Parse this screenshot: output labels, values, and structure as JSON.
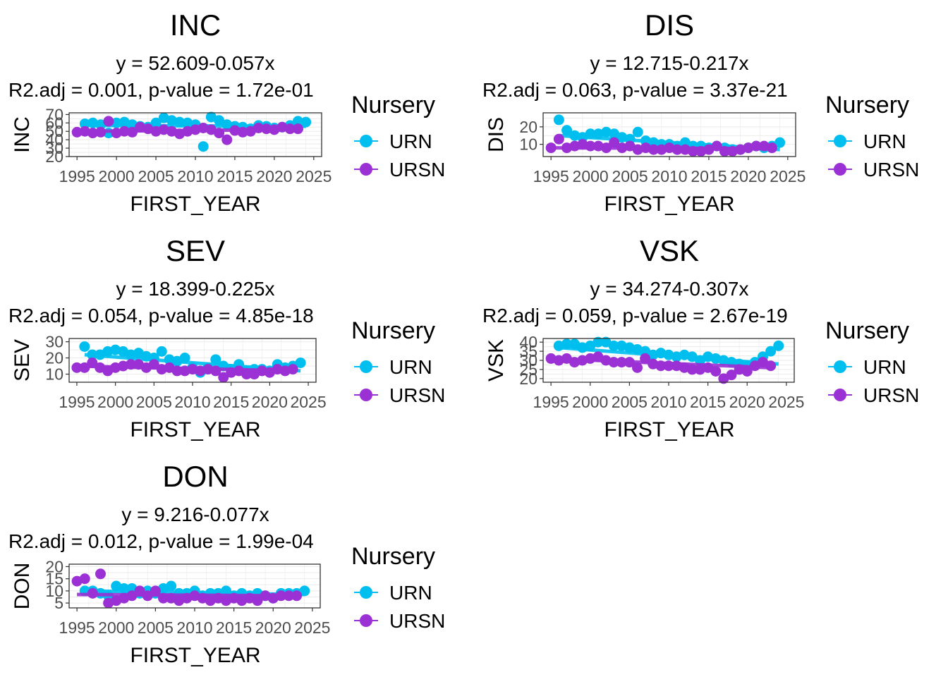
{
  "colors": {
    "URN": "#00bfef",
    "URSN": "#9b30d4",
    "grid": "#ebebeb",
    "axis": "#333333"
  },
  "chart_data": [
    {
      "type": "scatter",
      "title": "INC",
      "subtitle_eq": "y = 52.609-0.057x",
      "subtitle_stats": "R2.adj = 0.001, p-value = 1.72e-01",
      "xlabel": "FIRST_YEAR",
      "ylabel": "INC",
      "xlim": [
        1994,
        2026
      ],
      "ylim": [
        20,
        72
      ],
      "xticks": [
        1995,
        2000,
        2005,
        2010,
        2015,
        2020,
        2025
      ],
      "yticks": [
        20,
        30,
        40,
        50,
        60,
        70
      ],
      "grid": true,
      "legend": {
        "title": "Nursery",
        "position": "right",
        "entries": [
          "URN",
          "URSN"
        ]
      },
      "series": [
        {
          "name": "URN",
          "x": [
            1996,
            1997,
            1998,
            1999,
            2000,
            2001,
            2002,
            2003,
            2004,
            2005,
            2006,
            2007,
            2008,
            2009,
            2010,
            2011,
            2012,
            2013,
            2014,
            2015,
            2016,
            2017,
            2018,
            2019,
            2020,
            2021,
            2022,
            2023,
            2024
          ],
          "y": [
            59,
            60,
            58,
            48,
            60,
            61,
            58,
            56,
            55,
            60,
            66,
            63,
            61,
            60,
            58,
            32,
            67,
            63,
            58,
            56,
            55,
            53,
            57,
            56,
            54,
            55,
            57,
            62,
            61
          ],
          "trend": [
            57,
            56
          ]
        },
        {
          "name": "URSN",
          "x": [
            1995,
            1996,
            1997,
            1998,
            1999,
            2000,
            2001,
            2002,
            2003,
            2004,
            2005,
            2006,
            2007,
            2008,
            2009,
            2010,
            2011,
            2012,
            2013,
            2014,
            2015,
            2016,
            2017,
            2018,
            2019,
            2020,
            2021,
            2022,
            2023
          ],
          "y": [
            49,
            50,
            48,
            49,
            62,
            48,
            50,
            49,
            55,
            53,
            50,
            52,
            50,
            47,
            50,
            52,
            54,
            52,
            48,
            40,
            51,
            49,
            50,
            54,
            53,
            52,
            55,
            53,
            53
          ],
          "trend": [
            50,
            52
          ]
        }
      ]
    },
    {
      "type": "scatter",
      "title": "DIS",
      "subtitle_eq": "y = 12.715-0.217x",
      "subtitle_stats": "R2.adj = 0.063, p-value = 3.37e-21",
      "xlabel": "FIRST_YEAR",
      "ylabel": "DIS",
      "xlim": [
        1994,
        2026
      ],
      "ylim": [
        3,
        28
      ],
      "xticks": [
        1995,
        2000,
        2005,
        2010,
        2015,
        2020,
        2025
      ],
      "yticks": [
        10,
        20
      ],
      "grid": true,
      "legend": {
        "title": "Nursery",
        "position": "right",
        "entries": [
          "URN",
          "URSN"
        ]
      },
      "series": [
        {
          "name": "URN",
          "x": [
            1996,
            1997,
            1998,
            1999,
            2000,
            2001,
            2002,
            2003,
            2004,
            2005,
            2006,
            2007,
            2008,
            2009,
            2010,
            2011,
            2012,
            2013,
            2014,
            2015,
            2016,
            2017,
            2018,
            2019,
            2020,
            2021,
            2022,
            2023,
            2024
          ],
          "y": [
            24,
            18,
            15,
            14,
            16,
            16,
            17,
            16,
            14,
            13,
            17,
            12,
            11,
            10,
            10,
            9,
            11,
            9,
            9,
            8,
            9,
            8,
            7,
            7,
            8,
            9,
            8,
            9,
            11
          ],
          "trend": [
            15,
            7
          ]
        },
        {
          "name": "URSN",
          "x": [
            1995,
            1996,
            1997,
            1998,
            1999,
            2000,
            2001,
            2002,
            2003,
            2004,
            2005,
            2006,
            2007,
            2008,
            2009,
            2010,
            2011,
            2012,
            2013,
            2014,
            2015,
            2016,
            2017,
            2018,
            2019,
            2020,
            2021,
            2022,
            2023
          ],
          "y": [
            8,
            13,
            8,
            9,
            10,
            9,
            9,
            8,
            11,
            8,
            9,
            7,
            8,
            7,
            7,
            8,
            7,
            7,
            6,
            6,
            7,
            9,
            6,
            6,
            7,
            8,
            9,
            9,
            8
          ],
          "trend": [
            8,
            7.5
          ]
        }
      ]
    },
    {
      "type": "scatter",
      "title": "SEV",
      "subtitle_eq": "y = 18.399-0.225x",
      "subtitle_stats": "R2.adj = 0.054, p-value = 4.85e-18",
      "xlabel": "FIRST_YEAR",
      "ylabel": "SEV",
      "xlim": [
        1994,
        2026
      ],
      "ylim": [
        5,
        32
      ],
      "xticks": [
        1995,
        2000,
        2005,
        2010,
        2015,
        2020,
        2025
      ],
      "yticks": [
        10,
        20,
        30
      ],
      "grid": true,
      "legend": {
        "title": "Nursery",
        "position": "right",
        "entries": [
          "URN",
          "URSN"
        ]
      },
      "series": [
        {
          "name": "URN",
          "x": [
            1996,
            1997,
            1998,
            1999,
            2000,
            2001,
            2002,
            2003,
            2004,
            2005,
            2006,
            2007,
            2008,
            2009,
            2010,
            2011,
            2012,
            2013,
            2014,
            2015,
            2016,
            2017,
            2018,
            2019,
            2020,
            2021,
            2022,
            2023,
            2024
          ],
          "y": [
            27,
            22,
            22,
            24,
            25,
            24,
            22,
            23,
            21,
            20,
            24,
            19,
            18,
            20,
            14,
            11,
            14,
            19,
            15,
            13,
            16,
            12,
            13,
            13,
            12,
            16,
            14,
            15,
            17
          ],
          "trend": [
            22,
            12
          ]
        },
        {
          "name": "URSN",
          "x": [
            1995,
            1996,
            1997,
            1998,
            1999,
            2000,
            2001,
            2002,
            2003,
            2004,
            2005,
            2006,
            2007,
            2008,
            2009,
            2010,
            2011,
            2012,
            2013,
            2014,
            2015,
            2016,
            2017,
            2018,
            2019,
            2020,
            2021,
            2022,
            2023
          ],
          "y": [
            14,
            14,
            17,
            14,
            12,
            14,
            15,
            16,
            16,
            14,
            16,
            13,
            14,
            12,
            12,
            13,
            12,
            13,
            12,
            8,
            11,
            12,
            10,
            10,
            12,
            11,
            13,
            12,
            13
          ],
          "trend": [
            15,
            12
          ]
        }
      ]
    },
    {
      "type": "scatter",
      "title": "VSK",
      "subtitle_eq": "y = 34.274-0.307x",
      "subtitle_stats": "R2.adj = 0.059, p-value = 2.67e-19",
      "xlabel": "FIRST_YEAR",
      "ylabel": "VSK",
      "xlim": [
        1994,
        2026
      ],
      "ylim": [
        18,
        42
      ],
      "xticks": [
        1995,
        2000,
        2005,
        2010,
        2015,
        2020,
        2025
      ],
      "yticks": [
        20,
        25,
        30,
        35,
        40
      ],
      "grid": true,
      "legend": {
        "title": "Nursery",
        "position": "right",
        "entries": [
          "URN",
          "URSN"
        ]
      },
      "series": [
        {
          "name": "URN",
          "x": [
            1996,
            1997,
            1998,
            1999,
            2000,
            2001,
            2002,
            2003,
            2004,
            2005,
            2006,
            2007,
            2008,
            2009,
            2010,
            2011,
            2012,
            2013,
            2014,
            2015,
            2016,
            2017,
            2018,
            2019,
            2020,
            2021,
            2022,
            2023,
            2024
          ],
          "y": [
            38,
            39,
            39,
            37,
            38,
            40,
            40,
            38,
            38,
            37,
            36,
            35,
            33,
            34,
            33,
            32,
            33,
            32,
            30,
            32,
            31,
            30,
            29,
            28,
            27,
            29,
            32,
            35,
            38
          ],
          "trend": [
            37,
            28
          ]
        },
        {
          "name": "URSN",
          "x": [
            1995,
            1996,
            1997,
            1998,
            1999,
            2000,
            2001,
            2002,
            2003,
            2004,
            2005,
            2006,
            2007,
            2008,
            2009,
            2010,
            2011,
            2012,
            2013,
            2014,
            2015,
            2016,
            2017,
            2018,
            2019,
            2020,
            2021,
            2022,
            2023
          ],
          "y": [
            31,
            30,
            31,
            29,
            30,
            31,
            32,
            30,
            29,
            29,
            29,
            26,
            31,
            28,
            27,
            27,
            27,
            26,
            25,
            25,
            26,
            24,
            20,
            22,
            25,
            24,
            27,
            29,
            27
          ],
          "trend": [
            31,
            26
          ]
        }
      ]
    },
    {
      "type": "scatter",
      "title": "DON",
      "subtitle_eq": "y = 9.216-0.077x",
      "subtitle_stats": "R2.adj = 0.012, p-value = 1.99e-04",
      "xlabel": "FIRST_YEAR",
      "ylabel": "DON",
      "xlim": [
        1994,
        2026
      ],
      "ylim": [
        3,
        21
      ],
      "xticks": [
        1995,
        2000,
        2005,
        2010,
        2015,
        2020,
        2025
      ],
      "yticks": [
        5,
        10,
        15,
        20
      ],
      "grid": true,
      "legend": {
        "title": "Nursery",
        "position": "right",
        "entries": [
          "URN",
          "URSN"
        ]
      },
      "series": [
        {
          "name": "URN",
          "x": [
            1996,
            1997,
            1998,
            1999,
            2000,
            2001,
            2002,
            2003,
            2004,
            2005,
            2006,
            2007,
            2008,
            2009,
            2010,
            2011,
            2012,
            2013,
            2014,
            2015,
            2016,
            2017,
            2018,
            2019,
            2020,
            2021,
            2022,
            2023,
            2024
          ],
          "y": [
            10,
            10,
            9,
            8,
            12,
            11,
            11,
            9,
            10,
            9,
            11,
            12,
            9,
            9,
            10,
            8,
            9,
            9,
            10,
            8,
            9,
            8,
            9,
            8,
            7,
            9,
            9,
            9,
            10
          ],
          "trend": [
            10,
            8.5
          ]
        },
        {
          "name": "URSN",
          "x": [
            1995,
            1996,
            1997,
            1998,
            1999,
            2000,
            2001,
            2002,
            2003,
            2004,
            2005,
            2006,
            2007,
            2008,
            2009,
            2010,
            2011,
            2012,
            2013,
            2014,
            2015,
            2016,
            2017,
            2018,
            2019,
            2020,
            2021,
            2022,
            2023
          ],
          "y": [
            14,
            15,
            9,
            17,
            5,
            6,
            7,
            8,
            10,
            8,
            10,
            7,
            7,
            6,
            7,
            8,
            7,
            6,
            7,
            6,
            7,
            6,
            7,
            6,
            8,
            7,
            8,
            8,
            8
          ],
          "trend": [
            8.5,
            8
          ]
        }
      ]
    }
  ]
}
